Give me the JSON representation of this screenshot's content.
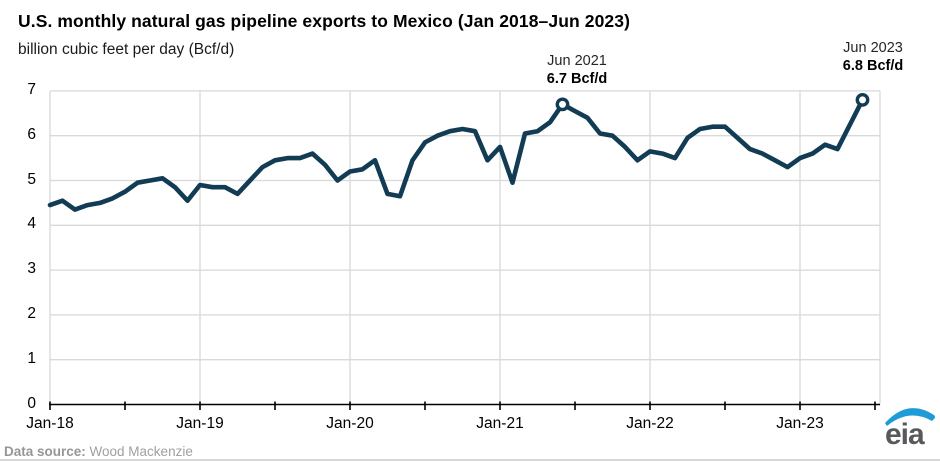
{
  "title": "U.S. monthly natural gas pipeline exports to Mexico (Jan 2018–Jun 2023)",
  "subtitle": "billion cubic feet per day (Bcf/d)",
  "annotations": [
    {
      "date": "Jun 2021",
      "value_label": "6.7 Bcf/d",
      "month": "2021-06",
      "value": 6.7
    },
    {
      "date": "Jun 2023",
      "value_label": "6.8 Bcf/d",
      "month": "2023-06",
      "value": 6.8
    }
  ],
  "footer": {
    "label": "Data source:",
    "source": " Wood Mackenzie"
  },
  "logo": {
    "text": "eia"
  },
  "colors": {
    "line": "#123b54",
    "grid": "#d9d9d9",
    "axis": "#000000",
    "logo_gray": "#58595b",
    "logo_blue": "#1e9cd7"
  },
  "chart_data": {
    "type": "line",
    "title": "U.S. monthly natural gas pipeline exports to Mexico (Jan 2018–Jun 2023)",
    "ylabel": "billion cubic feet per day (Bcf/d)",
    "unit": "Bcf/d",
    "ylim": [
      0,
      7
    ],
    "grid": true,
    "xtick_labels": [
      "Jan-18",
      "Jan-19",
      "Jan-20",
      "Jan-21",
      "Jan-22",
      "Jan-23"
    ],
    "ytick_labels": [
      "0",
      "1",
      "2",
      "3",
      "4",
      "5",
      "6",
      "7"
    ],
    "series": [
      {
        "name": "U.S. natural gas pipeline exports to Mexico",
        "months": [
          "2018-01",
          "2018-02",
          "2018-03",
          "2018-04",
          "2018-05",
          "2018-06",
          "2018-07",
          "2018-08",
          "2018-09",
          "2018-10",
          "2018-11",
          "2018-12",
          "2019-01",
          "2019-02",
          "2019-03",
          "2019-04",
          "2019-05",
          "2019-06",
          "2019-07",
          "2019-08",
          "2019-09",
          "2019-10",
          "2019-11",
          "2019-12",
          "2020-01",
          "2020-02",
          "2020-03",
          "2020-04",
          "2020-05",
          "2020-06",
          "2020-07",
          "2020-08",
          "2020-09",
          "2020-10",
          "2020-11",
          "2020-12",
          "2021-01",
          "2021-02",
          "2021-03",
          "2021-04",
          "2021-05",
          "2021-06",
          "2021-07",
          "2021-08",
          "2021-09",
          "2021-10",
          "2021-11",
          "2021-12",
          "2022-01",
          "2022-02",
          "2022-03",
          "2022-04",
          "2022-05",
          "2022-06",
          "2022-07",
          "2022-08",
          "2022-09",
          "2022-10",
          "2022-11",
          "2022-12",
          "2023-01",
          "2023-02",
          "2023-03",
          "2023-04",
          "2023-05",
          "2023-06"
        ],
        "values": [
          4.45,
          4.55,
          4.35,
          4.45,
          4.5,
          4.6,
          4.75,
          4.95,
          5.0,
          5.05,
          4.85,
          4.55,
          4.9,
          4.85,
          4.85,
          4.7,
          5.0,
          5.3,
          5.45,
          5.5,
          5.5,
          5.6,
          5.35,
          5.0,
          5.2,
          5.25,
          5.45,
          4.7,
          4.65,
          5.45,
          5.85,
          6.0,
          6.1,
          6.15,
          6.1,
          5.45,
          5.75,
          4.95,
          6.05,
          6.1,
          6.3,
          6.7,
          6.55,
          6.4,
          6.05,
          6.0,
          5.75,
          5.45,
          5.65,
          5.6,
          5.5,
          5.95,
          6.15,
          6.2,
          6.2,
          5.95,
          5.7,
          5.6,
          5.45,
          5.3,
          5.5,
          5.6,
          5.8,
          5.7,
          6.25,
          6.8
        ]
      }
    ]
  }
}
